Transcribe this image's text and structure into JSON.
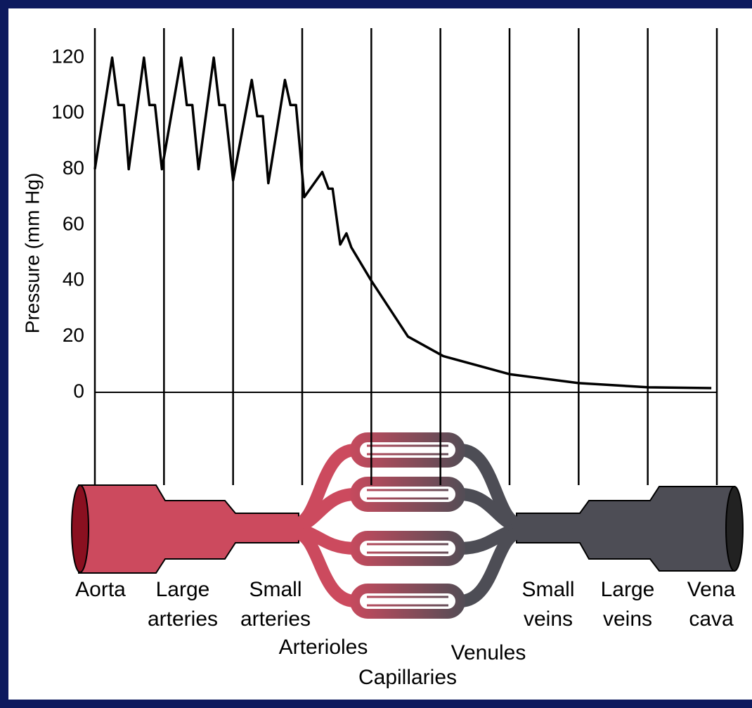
{
  "chart_data": {
    "type": "line",
    "ylabel": "Pressure (mm Hg)",
    "ylim": [
      0,
      120
    ],
    "yticks": [
      0,
      20,
      40,
      60,
      80,
      100,
      120
    ],
    "xlim": [
      0,
      9
    ],
    "color": "#000000",
    "x": [
      0,
      0.25,
      0.34,
      0.42,
      0.49,
      0.71,
      0.79,
      0.87,
      0.97,
      1.25,
      1.33,
      1.41,
      1.5,
      1.72,
      1.8,
      1.88,
      2.0,
      2.27,
      2.35,
      2.43,
      2.51,
      2.75,
      2.83,
      2.91,
      3.03,
      3.29,
      3.38,
      3.44,
      3.55,
      3.64,
      3.71,
      4.0,
      4.53,
      5.04,
      6.0,
      7.0,
      8.01,
      8.92
    ],
    "y": [
      80,
      120,
      103,
      103,
      80,
      120,
      103,
      103,
      80,
      120,
      103,
      103,
      80,
      120,
      103,
      103,
      76,
      112,
      99,
      99,
      75,
      112,
      103,
      103,
      70,
      79,
      73,
      73,
      53,
      57,
      52,
      40,
      20,
      13,
      6.5,
      3.3,
      1.8,
      1.5
    ],
    "vessel_labels": [
      "Aorta",
      "Large arteries",
      "Small arteries",
      "Arterioles",
      "Capillaries",
      "Venules",
      "Small veins",
      "Large veins",
      "Vena cava"
    ]
  }
}
